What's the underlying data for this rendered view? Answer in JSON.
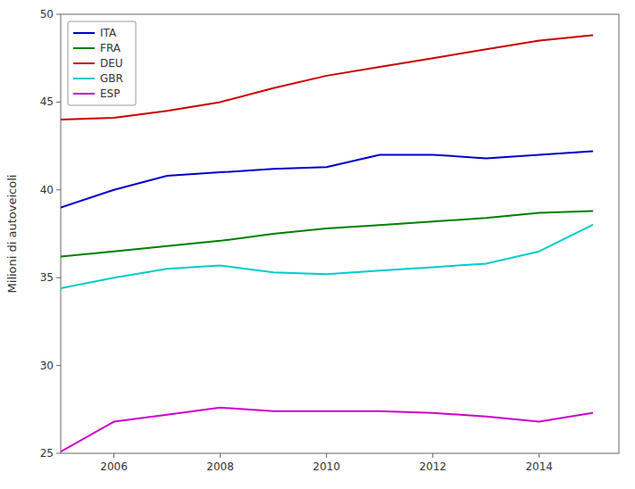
{
  "chart_data": {
    "type": "line",
    "x": [
      2005,
      2006,
      2007,
      2008,
      2009,
      2010,
      2011,
      2012,
      2013,
      2014,
      2015
    ],
    "series": [
      {
        "name": "ITA",
        "color": "#0000CC",
        "values": [
          39.0,
          40.0,
          40.8,
          41.0,
          41.2,
          41.3,
          42.0,
          42.0,
          41.8,
          42.0,
          42.2
        ]
      },
      {
        "name": "FRA",
        "color": "#008000",
        "values": [
          36.2,
          36.5,
          36.8,
          37.1,
          37.5,
          37.8,
          38.0,
          38.2,
          38.4,
          38.7,
          38.8
        ]
      },
      {
        "name": "DEU",
        "color": "#CC0000",
        "values": [
          44.0,
          44.1,
          44.5,
          45.0,
          45.8,
          46.5,
          47.0,
          47.5,
          48.0,
          48.5,
          48.8
        ]
      },
      {
        "name": "GBR",
        "color": "#00CCCC",
        "values": [
          34.4,
          35.0,
          35.5,
          35.7,
          35.3,
          35.2,
          35.4,
          35.6,
          35.8,
          36.5,
          38.0
        ]
      },
      {
        "name": "ESP",
        "color": "#CC00CC",
        "values": [
          25.1,
          26.8,
          27.2,
          27.6,
          27.4,
          27.4,
          27.4,
          27.3,
          27.1,
          26.8,
          27.3
        ]
      }
    ],
    "ylabel": "Milioni di autoveicoli",
    "xlim": [
      2005,
      2015.5
    ],
    "ylim": [
      25,
      50
    ],
    "xticks": [
      2006,
      2008,
      2010,
      2012,
      2014
    ],
    "yticks": [
      25,
      30,
      35,
      40,
      45,
      50
    ],
    "grid": false,
    "legend": "upper-left"
  }
}
